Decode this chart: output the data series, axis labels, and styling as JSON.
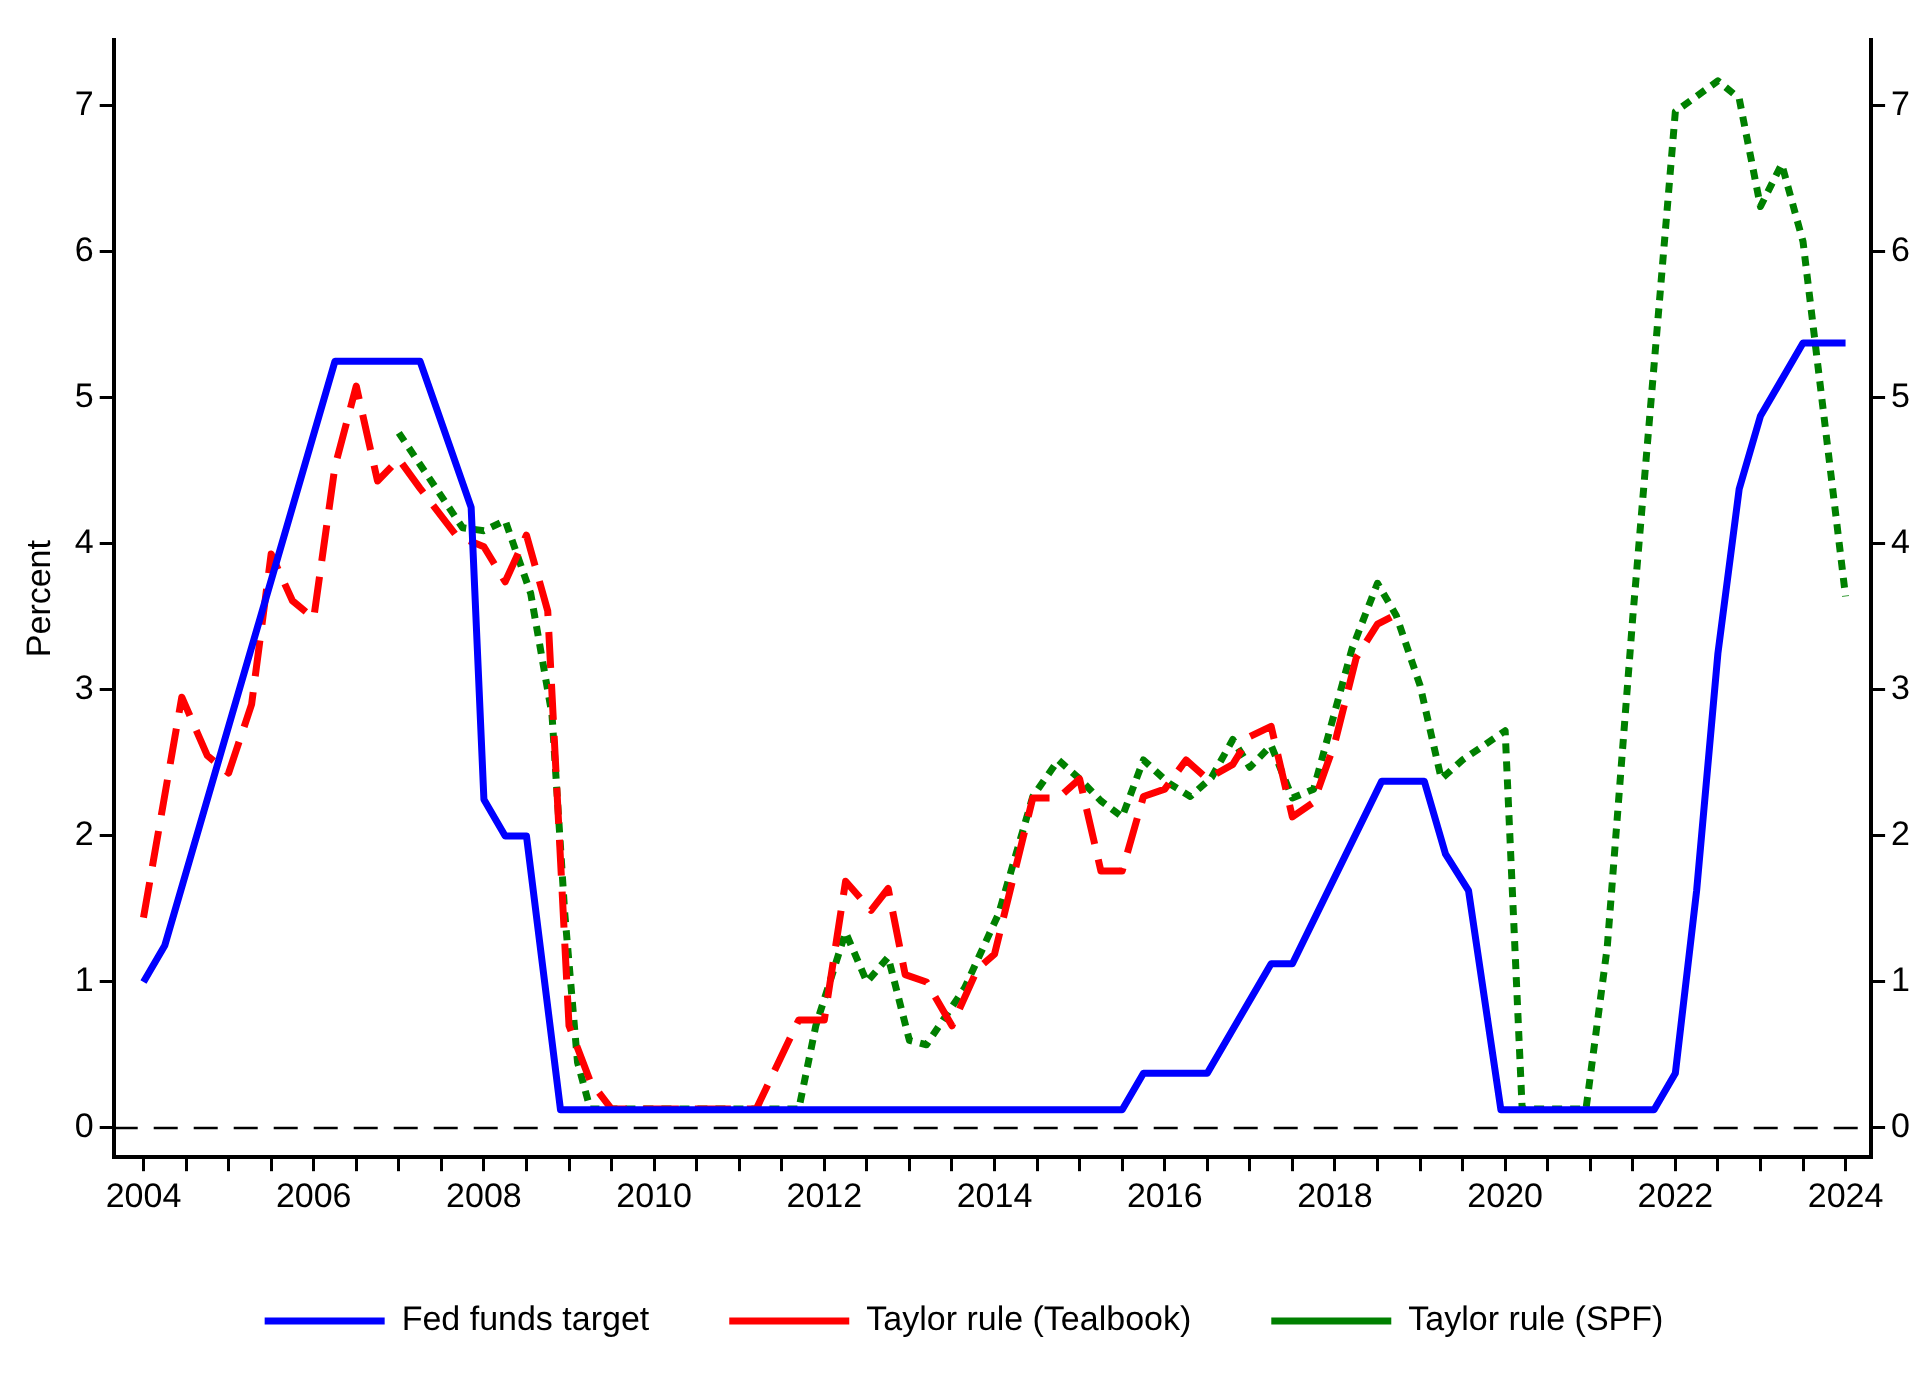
{
  "chart_data": {
    "type": "line",
    "ylabel": "Percent",
    "xlim": [
      2003.65,
      2024.3
    ],
    "ylim": [
      -0.2,
      7.45
    ],
    "y2lim": [
      -0.2,
      7.45
    ],
    "xticks": [
      2004,
      {
        "value": 2004.5,
        "label": null
      },
      {
        "value": 2005,
        "label": null
      },
      {
        "value": 2005.5,
        "label": null
      },
      2006,
      {
        "value": 2006.5,
        "label": null
      },
      {
        "value": 2007,
        "label": null
      },
      {
        "value": 2007.5,
        "label": null
      },
      2008,
      {
        "value": 2008.5,
        "label": null
      },
      {
        "value": 2009,
        "label": null
      },
      {
        "value": 2009.5,
        "label": null
      },
      2010,
      {
        "value": 2010.5,
        "label": null
      },
      {
        "value": 2011,
        "label": null
      },
      {
        "value": 2011.5,
        "label": null
      },
      2012,
      {
        "value": 2012.5,
        "label": null
      },
      {
        "value": 2013,
        "label": null
      },
      {
        "value": 2013.5,
        "label": null
      },
      2014,
      {
        "value": 2014.5,
        "label": null
      },
      {
        "value": 2015,
        "label": null
      },
      {
        "value": 2015.5,
        "label": null
      },
      2016,
      {
        "value": 2016.5,
        "label": null
      },
      {
        "value": 2017,
        "label": null
      },
      {
        "value": 2017.5,
        "label": null
      },
      2018,
      {
        "value": 2018.5,
        "label": null
      },
      {
        "value": 2019,
        "label": null
      },
      {
        "value": 2019.5,
        "label": null
      },
      2020,
      {
        "value": 2020.5,
        "label": null
      },
      {
        "value": 2021,
        "label": null
      },
      {
        "value": 2021.5,
        "label": null
      },
      2022,
      {
        "value": 2022.5,
        "label": null
      },
      {
        "value": 2023,
        "label": null
      },
      {
        "value": 2023.5,
        "label": null
      },
      2024
    ],
    "yticks": [
      0,
      1,
      2,
      3,
      4,
      5,
      6,
      7
    ],
    "y2ticks": [
      0,
      1,
      2,
      3,
      4,
      5,
      6,
      7
    ],
    "grid": false,
    "legend": "bottom",
    "marker": "none",
    "ref_lines": [
      {
        "axis": "y",
        "value": 0,
        "color": "#000000",
        "line_style": "dashed"
      }
    ],
    "series": [
      {
        "name": "Fed funds target",
        "color": "#0000ff",
        "line_style": "solid",
        "x": [
          2004.0,
          2004.25,
          2006.25,
          2007.25,
          2007.85,
          2008.0,
          2008.25,
          2008.5,
          2008.9,
          2015.5,
          2015.75,
          2016.5,
          2017.25,
          2017.5,
          2018.55,
          2019.05,
          2019.3,
          2019.57,
          2019.95,
          2021.75,
          2022.0,
          2022.25,
          2022.5,
          2022.75,
          2023.0,
          2023.5,
          2024.0
        ],
        "values": [
          1.0,
          1.25,
          5.25,
          5.25,
          4.25,
          2.25,
          2.0,
          2.0,
          0.125,
          0.125,
          0.375,
          0.375,
          1.125,
          1.125,
          2.375,
          2.375,
          1.875,
          1.625,
          0.125,
          0.125,
          0.375,
          1.625,
          3.25,
          4.375,
          4.875,
          5.375,
          5.375
        ]
      },
      {
        "name": "Taylor rule (Tealbook)",
        "color": "#ff0000",
        "line_style": "dashed",
        "x": [
          2004.0,
          2004.45,
          2004.75,
          2005.0,
          2005.27,
          2005.5,
          2005.75,
          2006.0,
          2006.25,
          2006.5,
          2006.75,
          2007.0,
          2007.25,
          2007.67,
          2008.0,
          2008.25,
          2008.5,
          2008.75,
          2009.0,
          2009.25,
          2009.5,
          2011.2,
          2011.7,
          2012.0,
          2012.25,
          2012.55,
          2012.75,
          2012.95,
          2013.2,
          2013.5,
          2013.8,
          2014.0,
          2014.45,
          2014.75,
          2015.0,
          2015.25,
          2015.5,
          2015.75,
          2016.0,
          2016.25,
          2016.5,
          2016.8,
          2017.0,
          2017.25,
          2017.5,
          2017.75,
          2018.0,
          2018.25,
          2018.5,
          2018.7
        ],
        "values": [
          1.44,
          2.95,
          2.55,
          2.43,
          2.9,
          3.93,
          3.61,
          3.49,
          4.53,
          5.08,
          4.43,
          4.58,
          4.38,
          4.06,
          3.98,
          3.74,
          4.06,
          3.54,
          0.7,
          0.32,
          0.13,
          0.13,
          0.74,
          0.74,
          1.69,
          1.49,
          1.64,
          1.05,
          1.0,
          0.7,
          1.09,
          1.19,
          2.26,
          2.26,
          2.39,
          1.76,
          1.76,
          2.27,
          2.32,
          2.52,
          2.39,
          2.49,
          2.68,
          2.75,
          2.13,
          2.23,
          2.64,
          3.22,
          3.45,
          3.51
        ]
      },
      {
        "name": "Taylor rule (SPF)",
        "color": "#008000",
        "line_style": "dotted",
        "x": [
          2007.0,
          2007.75,
          2008.0,
          2008.25,
          2008.55,
          2008.8,
          2008.95,
          2009.1,
          2009.25,
          2011.7,
          2011.9,
          2012.25,
          2012.5,
          2012.75,
          2013.0,
          2013.2,
          2013.65,
          2014.05,
          2014.45,
          2014.75,
          2015.0,
          2015.25,
          2015.5,
          2015.75,
          2016.05,
          2016.3,
          2016.55,
          2016.8,
          2017.0,
          2017.25,
          2017.5,
          2017.75,
          2018.2,
          2018.5,
          2018.72,
          2019.0,
          2019.25,
          2019.5,
          2020.0,
          2020.2,
          2020.95,
          2021.2,
          2021.5,
          2021.8,
          2022.0,
          2022.5,
          2022.75,
          2023.0,
          2023.25,
          2023.5,
          2024.0
        ],
        "values": [
          4.76,
          4.11,
          4.09,
          4.16,
          3.66,
          2.83,
          1.47,
          0.45,
          0.13,
          0.13,
          0.7,
          1.34,
          1.0,
          1.17,
          0.6,
          0.57,
          0.96,
          1.47,
          2.27,
          2.52,
          2.39,
          2.24,
          2.13,
          2.52,
          2.36,
          2.27,
          2.4,
          2.66,
          2.47,
          2.62,
          2.26,
          2.32,
          3.28,
          3.73,
          3.51,
          3.03,
          2.39,
          2.52,
          2.72,
          0.13,
          0.13,
          1.24,
          3.5,
          5.57,
          6.96,
          7.17,
          7.05,
          6.31,
          6.6,
          6.07,
          3.64
        ]
      }
    ]
  }
}
